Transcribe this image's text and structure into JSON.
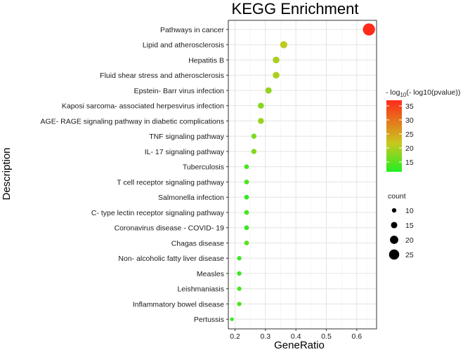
{
  "chart_data": {
    "type": "scatter",
    "title": "KEGG Enrichment",
    "xlabel": "GeneRatio",
    "ylabel": "Description",
    "xlim": [
      0.178,
      0.665
    ],
    "xticks": [
      0.2,
      0.3,
      0.4,
      0.5,
      0.6
    ],
    "xtick_labels": [
      "0.2",
      "0.3",
      "0.4",
      "0.5",
      "0.6"
    ],
    "grid": true,
    "colors": {
      "low": "#22ee22",
      "high": "#ff2a1a",
      "mid": "#c8c81e"
    },
    "points": [
      {
        "description": "Pathways in cancer",
        "gene_ratio": 0.64,
        "neg_log10_log10_p": 37,
        "count": 30
      },
      {
        "description": "Lipid and atherosclerosis",
        "gene_ratio": 0.36,
        "neg_log10_log10_p": 21,
        "count": 17
      },
      {
        "description": "Hepatitis B",
        "gene_ratio": 0.335,
        "neg_log10_log10_p": 20,
        "count": 16
      },
      {
        "description": "Fluid shear stress and atherosclerosis",
        "gene_ratio": 0.335,
        "neg_log10_log10_p": 20,
        "count": 16
      },
      {
        "description": "Epstein- Barr virus infection",
        "gene_ratio": 0.31,
        "neg_log10_log10_p": 18.5,
        "count": 15
      },
      {
        "description": "Kaposi sarcoma- associated herpesvirus infection",
        "gene_ratio": 0.285,
        "neg_log10_log10_p": 17.5,
        "count": 14
      },
      {
        "description": "AGE- RAGE signaling pathway in diabetic complications",
        "gene_ratio": 0.285,
        "neg_log10_log10_p": 19,
        "count": 14
      },
      {
        "description": "TNF signaling pathway",
        "gene_ratio": 0.262,
        "neg_log10_log10_p": 17,
        "count": 12
      },
      {
        "description": "IL- 17 signaling pathway",
        "gene_ratio": 0.262,
        "neg_log10_log10_p": 17.5,
        "count": 12
      },
      {
        "description": "Tuberculosis",
        "gene_ratio": 0.238,
        "neg_log10_log10_p": 14,
        "count": 11
      },
      {
        "description": "T cell receptor signaling pathway",
        "gene_ratio": 0.238,
        "neg_log10_log10_p": 14,
        "count": 11
      },
      {
        "description": "Salmonella infection",
        "gene_ratio": 0.238,
        "neg_log10_log10_p": 12.5,
        "count": 11
      },
      {
        "description": "C- type lectin receptor signaling pathway",
        "gene_ratio": 0.238,
        "neg_log10_log10_p": 14,
        "count": 11
      },
      {
        "description": "Coronavirus disease -  COVID- 19",
        "gene_ratio": 0.238,
        "neg_log10_log10_p": 13,
        "count": 11
      },
      {
        "description": "Chagas disease",
        "gene_ratio": 0.238,
        "neg_log10_log10_p": 15,
        "count": 11
      },
      {
        "description": "Non- alcoholic fatty liver disease",
        "gene_ratio": 0.214,
        "neg_log10_log10_p": 13,
        "count": 10
      },
      {
        "description": "Measles",
        "gene_ratio": 0.214,
        "neg_log10_log10_p": 13,
        "count": 10
      },
      {
        "description": "Leishmaniasis",
        "gene_ratio": 0.214,
        "neg_log10_log10_p": 14,
        "count": 10
      },
      {
        "description": "Inflammatory bowel disease",
        "gene_ratio": 0.214,
        "neg_log10_log10_p": 14,
        "count": 10
      },
      {
        "description": "Pertussis",
        "gene_ratio": 0.19,
        "neg_log10_log10_p": 12.5,
        "count": 8
      }
    ],
    "color_legend": {
      "title_prefix": "- log",
      "title_subscript": "10",
      "title_suffix": "(- log10(pvalue))",
      "min": 11.5,
      "max": 37,
      "ticks": [
        15,
        20,
        25,
        30,
        35
      ],
      "tick_labels": [
        "15",
        "20",
        "25",
        "30",
        "35"
      ]
    },
    "size_legend": {
      "title": "count",
      "values": [
        10,
        15,
        20,
        25
      ],
      "labels": [
        "10",
        "15",
        "20",
        "25"
      ]
    }
  }
}
